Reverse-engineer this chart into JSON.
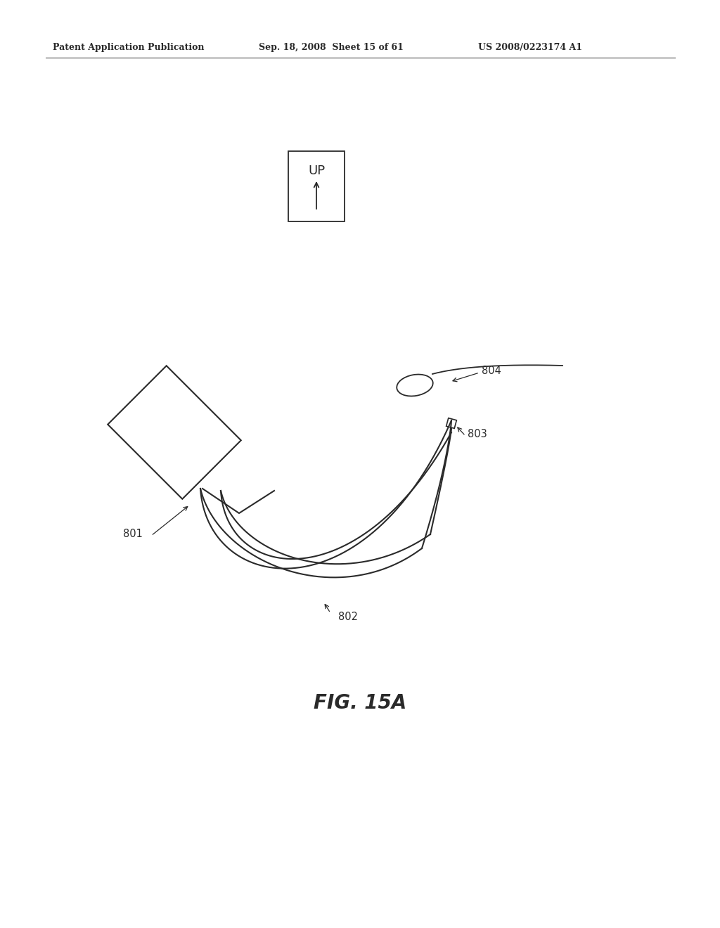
{
  "header_left": "Patent Application Publication",
  "header_mid": "Sep. 18, 2008  Sheet 15 of 61",
  "header_right": "US 2008/0223174 A1",
  "fig_caption": "FIG. 15A",
  "bg_color": "#ffffff",
  "line_color": "#2a2a2a"
}
